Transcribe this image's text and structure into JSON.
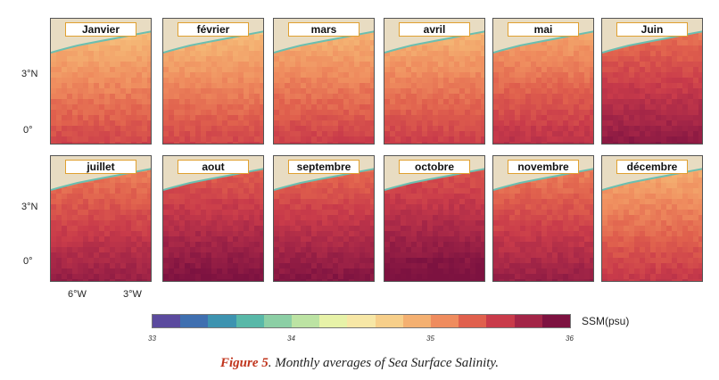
{
  "figure": {
    "months": [
      {
        "name": "Janvier",
        "salinity": 35.05
      },
      {
        "name": "février",
        "salinity": 35.05
      },
      {
        "name": "mars",
        "salinity": 35.1
      },
      {
        "name": "avril",
        "salinity": 35.1
      },
      {
        "name": "mai",
        "salinity": 35.2
      },
      {
        "name": "Juin",
        "salinity": 35.45
      },
      {
        "name": "juillet",
        "salinity": 35.4
      },
      {
        "name": "aout",
        "salinity": 35.55
      },
      {
        "name": "septembre",
        "salinity": 35.5
      },
      {
        "name": "octobre",
        "salinity": 35.6
      },
      {
        "name": "novembre",
        "salinity": 35.4
      },
      {
        "name": "décembre",
        "salinity": 35.15
      }
    ],
    "y_labels": [
      "3°N",
      "0°"
    ],
    "x_labels": [
      "6°W",
      "3°W"
    ],
    "colorbar": {
      "min": 33,
      "max": 36,
      "ticks": [
        "33",
        "34",
        "35",
        "36"
      ],
      "unit": "SSM(psu)",
      "colors": [
        "#5b4a9e",
        "#3f6fb0",
        "#3d93b0",
        "#58b8a8",
        "#8ccfa5",
        "#bce3a3",
        "#e7f2a8",
        "#f7e7a6",
        "#f7cf8a",
        "#f4b071",
        "#ef8c5e",
        "#e0604d",
        "#c93b4a",
        "#a32547",
        "#7d1240"
      ]
    },
    "caption": {
      "label": "Figure 5",
      "text": ". Monthly averages of Sea Surface Salinity."
    }
  }
}
